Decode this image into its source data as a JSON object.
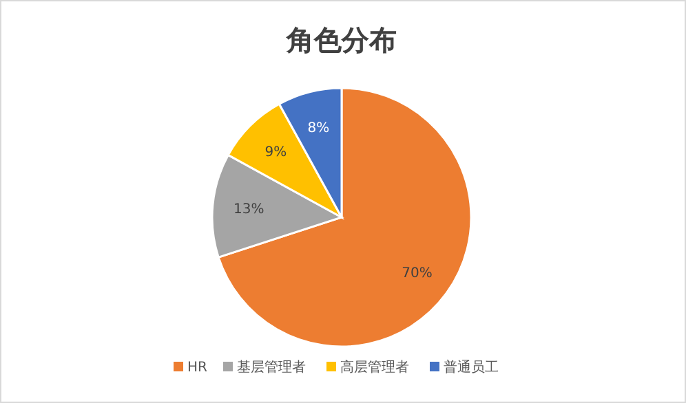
{
  "chart_data": {
    "type": "pie",
    "title": "角色分布",
    "categories": [
      "HR",
      "基层管理者",
      "高层管理者",
      "普通员工"
    ],
    "values": [
      70,
      13,
      9,
      8
    ],
    "colors": [
      "#ed7d31",
      "#a5a5a5",
      "#ffc000",
      "#4472c4"
    ],
    "value_labels": [
      "70%",
      "13%",
      "9%",
      "8%"
    ],
    "legend": "bottom"
  }
}
